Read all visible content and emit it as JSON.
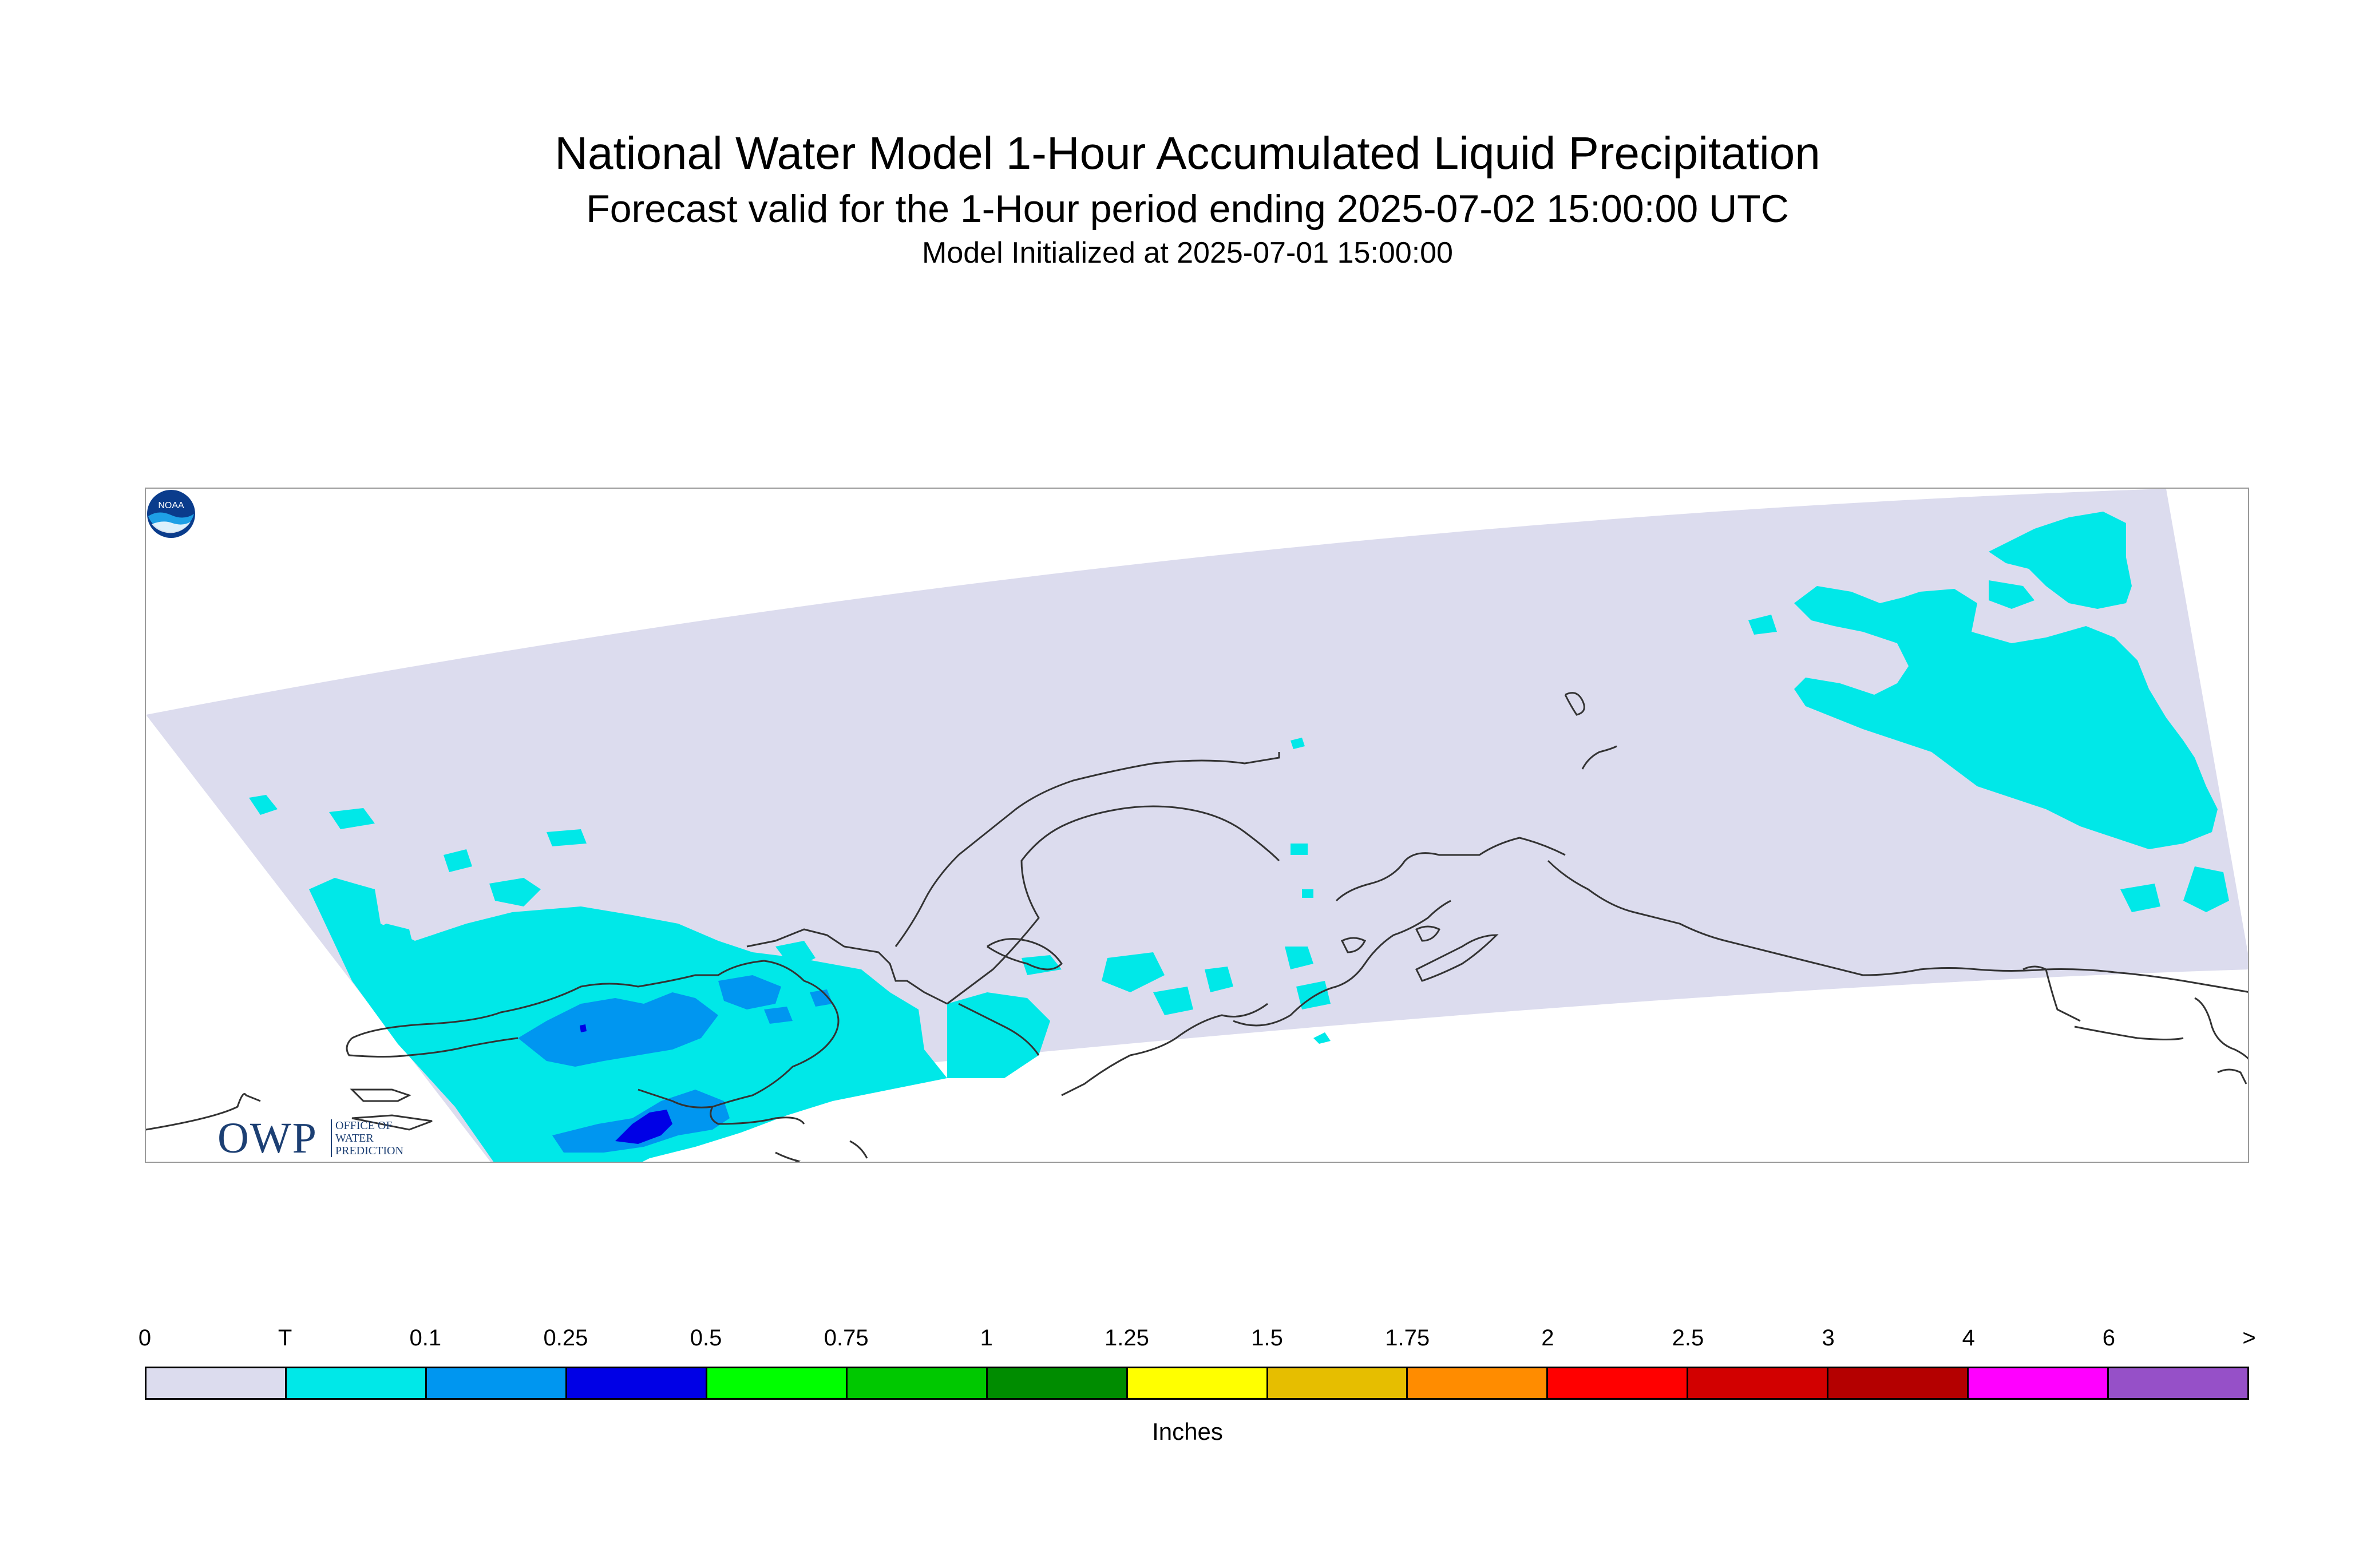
{
  "header": {
    "title": "National Water Model 1-Hour Accumulated Liquid Precipitation",
    "subtitle": "Forecast valid for the 1-Hour period ending 2025-07-02 15:00:00 UTC",
    "init_line": "Model Initialized at 2025-07-01 15:00:00"
  },
  "logos": {
    "owp_big": "OWP",
    "owp_line1": "OFFICE OF",
    "owp_line2": "WATER",
    "owp_line3": "PREDICTION",
    "noaa_text": "NOAA"
  },
  "colors": {
    "domain": "#dcdcee",
    "trace": "#00e8e8",
    "light_blue": "#0096f0",
    "dark_blue": "#0000e6",
    "coastline": "#333333"
  },
  "legend": {
    "units": "Inches",
    "ticks": [
      "0",
      "T",
      "0.1",
      "0.25",
      "0.5",
      "0.75",
      "1",
      "1.25",
      "1.5",
      "1.75",
      "2",
      "2.5",
      "3",
      "4",
      "6",
      ">"
    ],
    "colors": [
      "#dcdcee",
      "#00e8e8",
      "#0096f0",
      "#0000e6",
      "#00ff00",
      "#00c800",
      "#008c00",
      "#ffff00",
      "#e6be00",
      "#ff8c00",
      "#ff0000",
      "#d20000",
      "#b40000",
      "#ff00ff",
      "#9650c8"
    ]
  }
}
